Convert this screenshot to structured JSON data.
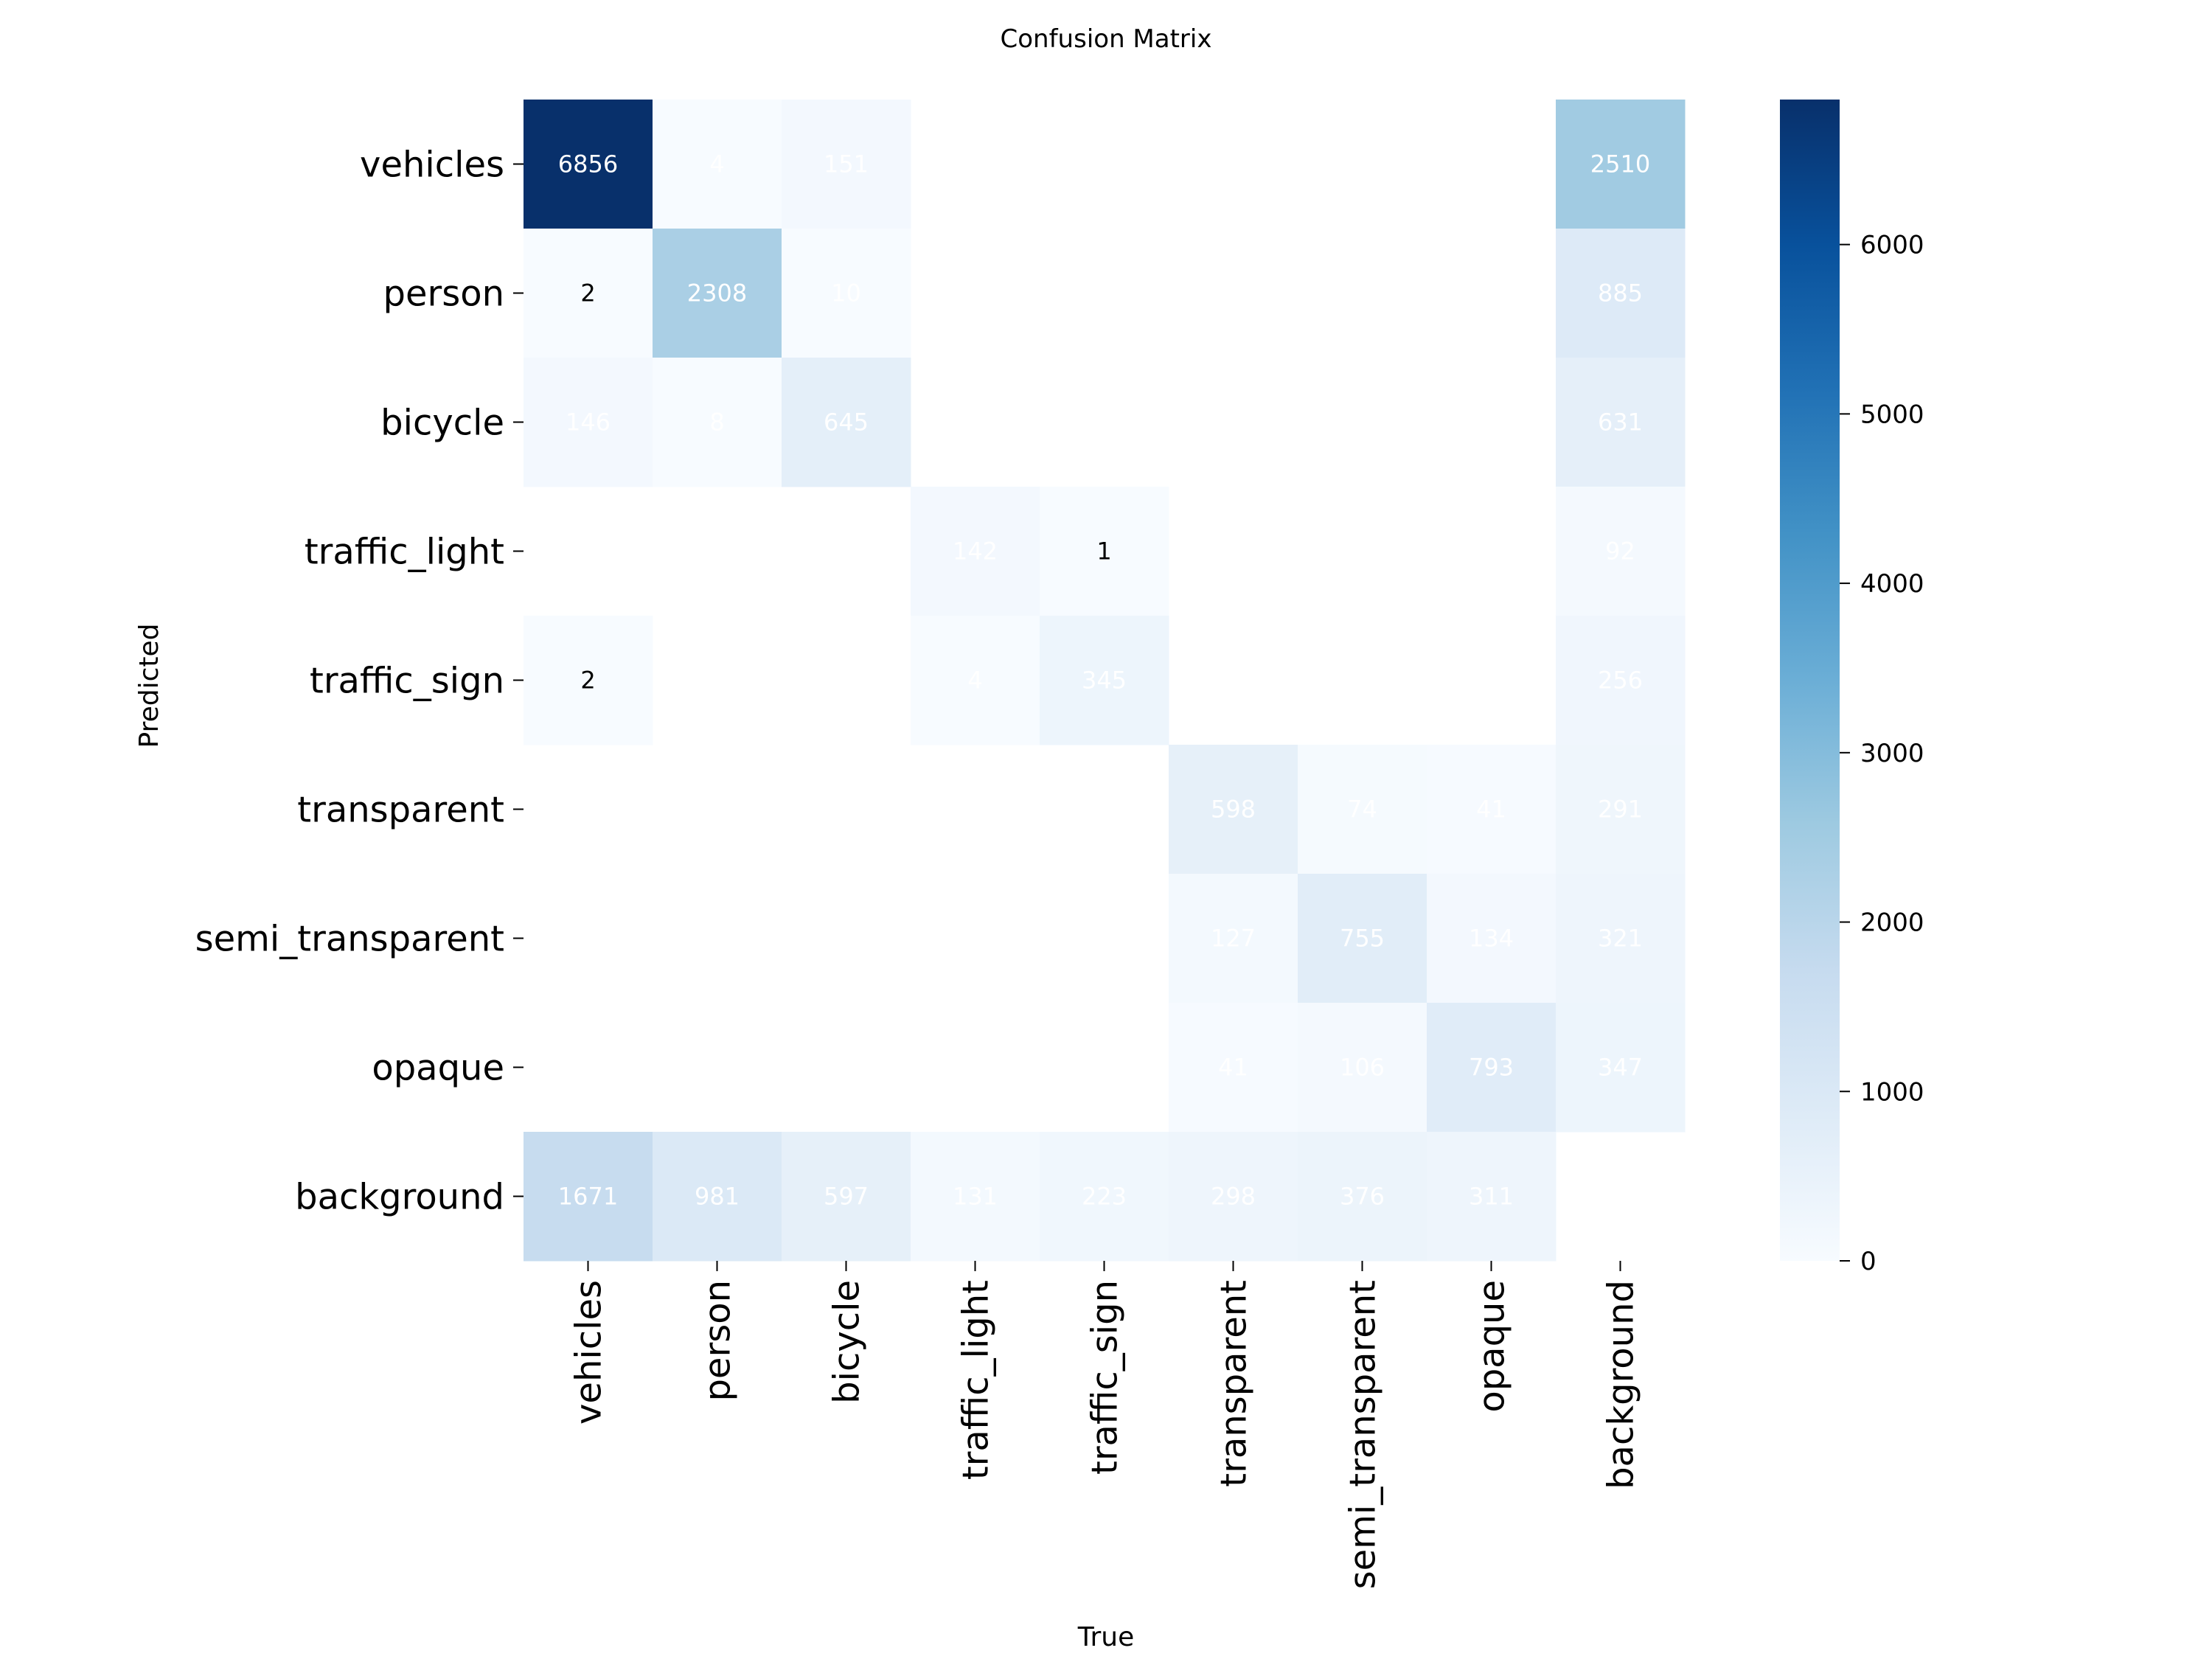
{
  "chart_data": {
    "type": "heatmap",
    "title": "Confusion Matrix",
    "xlabel": "True",
    "ylabel": "Predicted",
    "x_categories": [
      "vehicles",
      "person",
      "bicycle",
      "traffic_light",
      "traffic_sign",
      "transparent",
      "semi_transparent",
      "opaque",
      "background"
    ],
    "y_categories": [
      "vehicles",
      "person",
      "bicycle",
      "traffic_light",
      "traffic_sign",
      "transparent",
      "semi_transparent",
      "opaque",
      "background"
    ],
    "values": [
      [
        6856,
        4,
        151,
        null,
        null,
        null,
        null,
        null,
        2510
      ],
      [
        2,
        2308,
        10,
        null,
        null,
        null,
        null,
        null,
        885
      ],
      [
        146,
        8,
        645,
        null,
        null,
        null,
        null,
        null,
        631
      ],
      [
        null,
        null,
        null,
        142,
        1,
        null,
        null,
        null,
        92
      ],
      [
        2,
        null,
        null,
        4,
        345,
        null,
        null,
        null,
        256
      ],
      [
        null,
        null,
        null,
        null,
        null,
        598,
        74,
        41,
        291
      ],
      [
        null,
        null,
        null,
        null,
        null,
        127,
        755,
        134,
        321
      ],
      [
        null,
        null,
        null,
        null,
        null,
        41,
        106,
        793,
        347
      ],
      [
        1671,
        981,
        597,
        131,
        223,
        298,
        376,
        311,
        null
      ]
    ],
    "colorbar": {
      "min": 0,
      "max": 6856,
      "ticks": [
        0,
        1000,
        2000,
        3000,
        4000,
        5000,
        6000
      ],
      "colormap": "Blues"
    },
    "grid": false
  }
}
